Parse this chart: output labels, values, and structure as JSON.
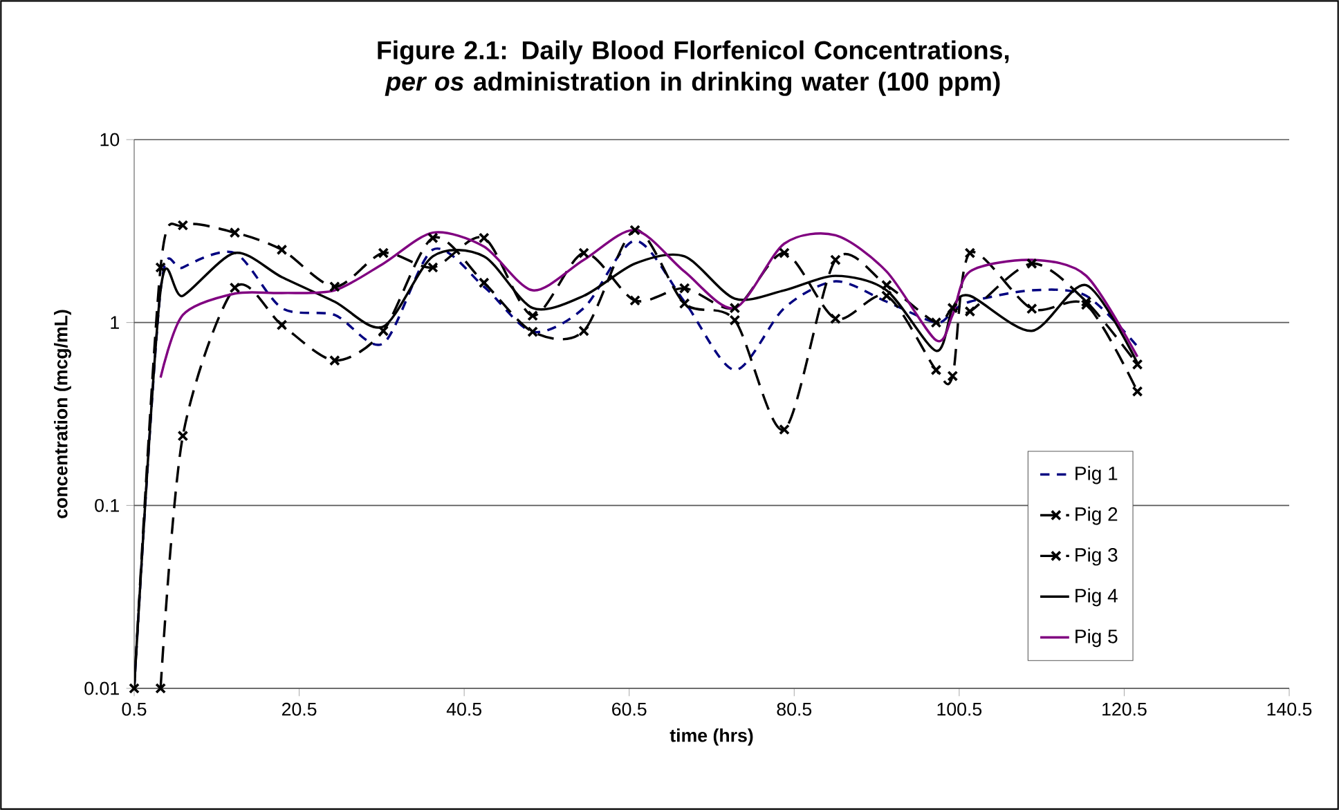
{
  "chart_data": {
    "type": "line",
    "title": "Figure 2.1: Daily  Blood Florfenicol Concentrations, *per os* administration in drinking water (100 ppm)",
    "xlabel": "time (hrs)",
    "ylabel": "concentration (mcg/mL)",
    "log": "y",
    "grid": "y",
    "legend": "bottom right",
    "xlim": [
      0.5,
      140.5
    ],
    "xticks": [
      0.5,
      20.5,
      40.5,
      60.5,
      80.5,
      100.5,
      120.5,
      140.5
    ],
    "ylim": [
      0.01,
      10
    ],
    "yticks": [
      0.01,
      0.1,
      1,
      10
    ],
    "x": [
      0.5,
      3.7,
      6.4,
      12.7,
      18.4,
      24.8,
      30.7,
      36.7,
      42.9,
      48.8,
      55,
      61.2,
      67.2,
      73.3,
      79.3,
      85.5,
      91.7,
      97.7,
      99.7,
      101.8,
      109.3,
      115.9,
      122.1
    ],
    "series": [
      {
        "name": "Pig 1",
        "color": "#000080",
        "line_style": "dashed",
        "marker": "none",
        "values": [
          0.01,
          1.5,
          2.0,
          2.4,
          1.2,
          1.1,
          0.77,
          2.5,
          1.57,
          0.89,
          1.2,
          2.8,
          1.3,
          0.55,
          1.2,
          1.68,
          1.3,
          1.0,
          1.15,
          1.3,
          1.5,
          1.4,
          0.74
        ]
      },
      {
        "name": "Pig 2",
        "color": "#000000",
        "line_style": "dashed",
        "marker": "cross",
        "values": [
          0.01,
          2.0,
          3.4,
          3.1,
          2.5,
          1.57,
          2.4,
          2.0,
          2.9,
          1.09,
          2.4,
          1.32,
          1.54,
          1.2,
          2.4,
          1.05,
          1.4,
          0.55,
          0.51,
          2.4,
          1.19,
          1.25,
          0.42
        ]
      },
      {
        "name": "Pig 3",
        "color": "#000000",
        "line_style": "dashed",
        "marker": "cross",
        "values": [
          null,
          0.01,
          0.24,
          1.55,
          0.97,
          0.62,
          0.9,
          2.9,
          1.65,
          0.89,
          0.9,
          3.2,
          1.27,
          1.03,
          0.26,
          2.2,
          1.6,
          1.0,
          1.2,
          1.15,
          2.1,
          1.3,
          0.59
        ]
      },
      {
        "name": "Pig 4",
        "color": "#000000",
        "line_style": "solid",
        "marker": "none",
        "values": [
          0.01,
          1.5,
          1.4,
          2.4,
          1.77,
          1.3,
          0.95,
          2.3,
          2.3,
          1.2,
          1.4,
          2.1,
          2.3,
          1.35,
          1.5,
          1.8,
          1.5,
          0.7,
          1.2,
          1.4,
          0.9,
          1.6,
          0.6
        ]
      },
      {
        "name": "Pig 5",
        "color": "#800080",
        "line_style": "solid",
        "marker": "none",
        "values": [
          null,
          0.5,
          1.1,
          1.44,
          1.45,
          1.5,
          2.1,
          3.1,
          2.6,
          1.5,
          2.2,
          3.2,
          1.9,
          1.2,
          2.7,
          3.0,
          1.9,
          0.8,
          1.1,
          1.9,
          2.2,
          1.8,
          0.65
        ]
      }
    ]
  }
}
